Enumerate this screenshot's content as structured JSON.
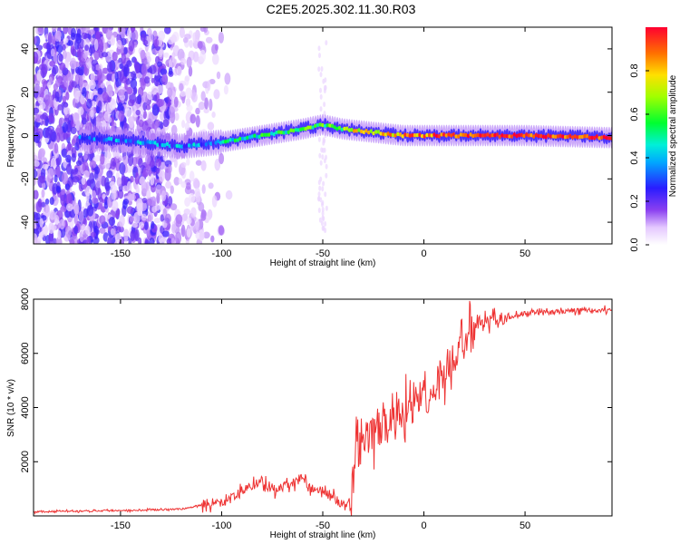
{
  "title": "C2E5.2025.302.11.30.R03",
  "chart_data": [
    {
      "type": "heatmap",
      "xlabel": "Height of straight line (km)",
      "ylabel": "Frequency (Hz)",
      "xlim": [
        -193,
        93
      ],
      "ylim": [
        -50,
        50
      ],
      "xticks": [
        -150,
        -100,
        -50,
        0,
        50
      ],
      "yticks": [
        -40,
        -20,
        0,
        20,
        40
      ],
      "colorbar": {
        "label": "Normalized spectral amplitude",
        "range": [
          0,
          1
        ],
        "ticks": [
          0.0,
          0.2,
          0.4,
          0.6,
          0.8
        ],
        "tick_labels": [
          "0.0",
          "0.2",
          "0.4",
          "0.6",
          "0.8"
        ]
      },
      "ridge": {
        "description_x": [
          -193,
          -150,
          -120,
          -100,
          -80,
          -60,
          -50,
          -40,
          -30,
          -20,
          -10,
          0,
          20,
          50,
          93
        ],
        "center_hz": [
          0,
          -2,
          -5,
          -3,
          0,
          3,
          5,
          3,
          2,
          1,
          0,
          0,
          0,
          0,
          -1
        ]
      }
    },
    {
      "type": "line",
      "xlabel": "Height of straight line (km)",
      "ylabel": "SNR (10 * v/v)",
      "xlim": [
        -193,
        93
      ],
      "ylim": [
        0,
        8000
      ],
      "xticks": [
        -150,
        -100,
        -50,
        0,
        50
      ],
      "yticks": [
        2000,
        4000,
        6000,
        8000
      ],
      "series": [
        {
          "name": "SNR",
          "color": "#ee3333",
          "x": [
            -193,
            -150,
            -120,
            -110,
            -100,
            -95,
            -85,
            -80,
            -75,
            -65,
            -60,
            -55,
            -50,
            -45,
            -40,
            -36,
            -34,
            -30,
            -25,
            -20,
            -15,
            -10,
            -5,
            0,
            5,
            10,
            15,
            20,
            25,
            30,
            40,
            50,
            60,
            70,
            80,
            93
          ],
          "y": [
            150,
            200,
            250,
            400,
            500,
            650,
            1100,
            1300,
            900,
            1200,
            1400,
            1000,
            900,
            700,
            400,
            300,
            2300,
            2700,
            3000,
            3300,
            3400,
            3900,
            4000,
            4400,
            4700,
            5400,
            5800,
            6300,
            6900,
            7100,
            7300,
            7500,
            7500,
            7550,
            7600,
            7600
          ]
        }
      ]
    }
  ]
}
